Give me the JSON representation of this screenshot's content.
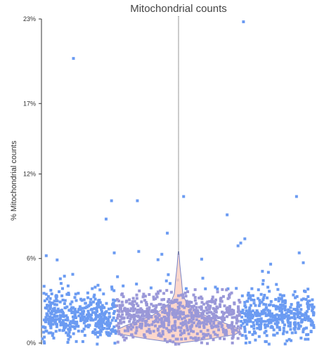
{
  "chart_data": {
    "type": "scatter",
    "title": "Mitochondrial counts",
    "xlabel": "",
    "ylabel": "% Mitochondrial counts",
    "ylim": [
      0,
      23
    ],
    "y_ticks": [
      {
        "value": 0,
        "label": "0%"
      },
      {
        "value": 6,
        "label": "6%"
      },
      {
        "value": 12,
        "label": "12%"
      },
      {
        "value": 17,
        "label": "17%"
      },
      {
        "value": 23,
        "label": "23%"
      }
    ],
    "grid": false,
    "legend": "none",
    "overlays": [
      "violin",
      "strip-line"
    ],
    "colors": {
      "points": "#6b9bf2",
      "points_overlap": "#9a98d8",
      "violin_fill": "#fbd0c3",
      "violin_stroke": "#7a86c8",
      "axis": "#333333",
      "strip_line": "#333333"
    },
    "outliers": [
      {
        "x": 0.115,
        "y": 20.2
      },
      {
        "x": 0.74,
        "y": 22.8
      },
      {
        "x": 0.52,
        "y": 10.4
      },
      {
        "x": 0.255,
        "y": 10.1
      },
      {
        "x": 0.35,
        "y": 10.1
      },
      {
        "x": 0.935,
        "y": 10.4
      },
      {
        "x": 0.68,
        "y": 9.1
      },
      {
        "x": 0.235,
        "y": 8.8
      },
      {
        "x": 0.46,
        "y": 7.8
      },
      {
        "x": 0.745,
        "y": 7.4
      },
      {
        "x": 0.72,
        "y": 6.9
      },
      {
        "x": 0.73,
        "y": 7.1
      },
      {
        "x": 0.015,
        "y": 6.2
      },
      {
        "x": 0.055,
        "y": 5.9
      },
      {
        "x": 0.265,
        "y": 6.4
      },
      {
        "x": 0.355,
        "y": 6.5
      },
      {
        "x": 0.44,
        "y": 6.3
      },
      {
        "x": 0.945,
        "y": 6.4
      },
      {
        "x": 0.96,
        "y": 5.7
      },
      {
        "x": 0.84,
        "y": 5.6
      }
    ]
  }
}
